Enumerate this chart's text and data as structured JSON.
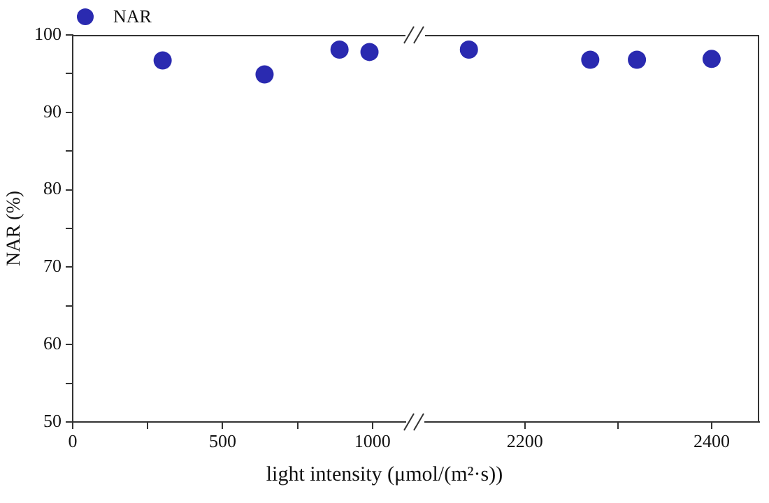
{
  "chart_data": [
    {
      "type": "scatter",
      "ylabel": "NAR (%)",
      "xlabel": "light intensity (μmol/(m²·s))",
      "legend": "top left",
      "marker": "circle",
      "grid": false,
      "xlim": [
        0,
        1110
      ],
      "xticks": [
        0,
        {
          "value": 250,
          "label": null
        },
        500,
        {
          "value": 750,
          "label": null
        },
        1000
      ],
      "ylim": [
        50,
        100
      ],
      "yticks": [
        50,
        {
          "value": 55,
          "label": null
        },
        60,
        {
          "value": 65,
          "label": null
        },
        70,
        {
          "value": 75,
          "label": null
        },
        80,
        {
          "value": 85,
          "label": null
        },
        90,
        {
          "value": 95,
          "label": null
        },
        100
      ],
      "series": [
        {
          "name": "NAR",
          "color": "#2a2ab0",
          "x": [
            300,
            640,
            890,
            990
          ],
          "values": [
            96.7,
            94.9,
            98.1,
            97.8
          ]
        }
      ]
    },
    {
      "type": "scatter",
      "marker": "circle",
      "grid": false,
      "tick_labels": "x",
      "xlim": [
        2093,
        2451
      ],
      "xticks": [
        2200,
        {
          "value": 2300,
          "label": null
        },
        2400
      ],
      "ylim": [
        50,
        100
      ],
      "series": [
        {
          "color": "#2a2ab0",
          "x": [
            2140,
            2270,
            2320,
            2400
          ],
          "values": [
            98.1,
            96.8,
            96.8,
            96.9
          ]
        }
      ]
    }
  ]
}
